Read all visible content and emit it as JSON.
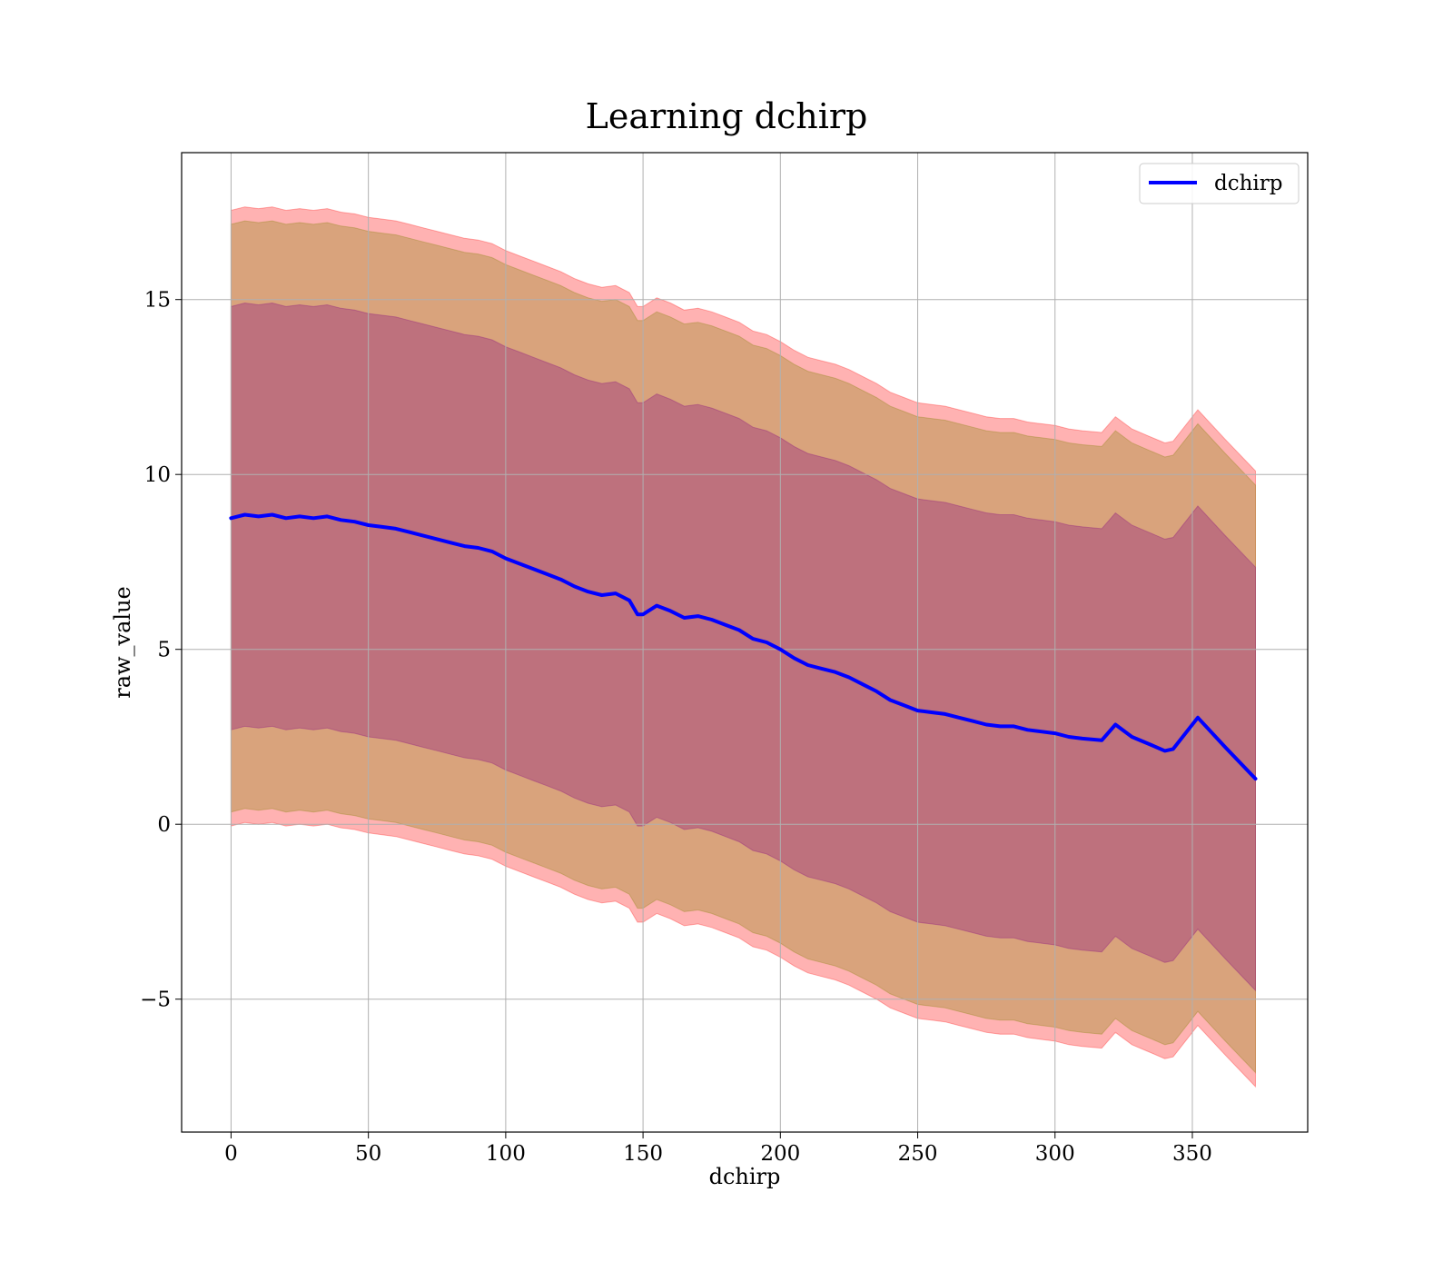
{
  "chart_data": {
    "type": "line",
    "title": "Learning dchirp",
    "xlabel": "dchirp",
    "ylabel": "raw_value",
    "xlim": [
      -18,
      392
    ],
    "ylim": [
      -8.8,
      19.2
    ],
    "xticks": [
      0,
      50,
      100,
      150,
      200,
      250,
      300,
      350
    ],
    "yticks": [
      -5,
      0,
      5,
      10,
      15
    ],
    "xtick_labels": [
      "0",
      "50",
      "100",
      "150",
      "200",
      "250",
      "300",
      "350"
    ],
    "ytick_labels": [
      "−5",
      "0",
      "5",
      "10",
      "15"
    ],
    "grid": true,
    "legend_position": "top-right",
    "x": [
      0,
      5,
      10,
      15,
      20,
      25,
      30,
      35,
      40,
      45,
      50,
      55,
      60,
      65,
      70,
      75,
      80,
      85,
      90,
      95,
      100,
      105,
      110,
      115,
      120,
      125,
      130,
      135,
      140,
      145,
      148,
      150,
      155,
      160,
      165,
      170,
      175,
      180,
      185,
      190,
      195,
      200,
      205,
      210,
      215,
      220,
      225,
      230,
      235,
      240,
      245,
      250,
      255,
      260,
      265,
      270,
      275,
      280,
      285,
      290,
      295,
      300,
      305,
      310,
      317,
      322,
      328,
      334,
      340,
      343,
      352,
      362,
      373
    ],
    "series": [
      {
        "name": "dchirp",
        "color": "#0000ff",
        "values": [
          8.75,
          8.85,
          8.8,
          8.85,
          8.75,
          8.8,
          8.75,
          8.8,
          8.7,
          8.65,
          8.55,
          8.5,
          8.45,
          8.35,
          8.25,
          8.15,
          8.05,
          7.95,
          7.9,
          7.8,
          7.6,
          7.45,
          7.3,
          7.15,
          7.0,
          6.8,
          6.65,
          6.55,
          6.6,
          6.4,
          6.0,
          6.0,
          6.25,
          6.1,
          5.9,
          5.95,
          5.85,
          5.7,
          5.55,
          5.3,
          5.2,
          5.0,
          4.75,
          4.55,
          4.45,
          4.35,
          4.2,
          4.0,
          3.8,
          3.55,
          3.4,
          3.25,
          3.2,
          3.15,
          3.05,
          2.95,
          2.85,
          2.8,
          2.8,
          2.7,
          2.65,
          2.6,
          2.5,
          2.45,
          2.4,
          2.85,
          2.5,
          2.3,
          2.1,
          2.15,
          3.05,
          2.2,
          1.3
        ]
      }
    ],
    "bands": [
      {
        "color": "#ff0000",
        "opacity": 0.3,
        "offset_start": 8.8,
        "offset_end": 8.8
      },
      {
        "color": "#808000",
        "opacity": 0.3,
        "offset_start": 8.4,
        "offset_end": 8.4
      },
      {
        "color": "#800080",
        "opacity": 0.3,
        "offset_start": 6.05,
        "offset_end": 6.05
      }
    ]
  }
}
